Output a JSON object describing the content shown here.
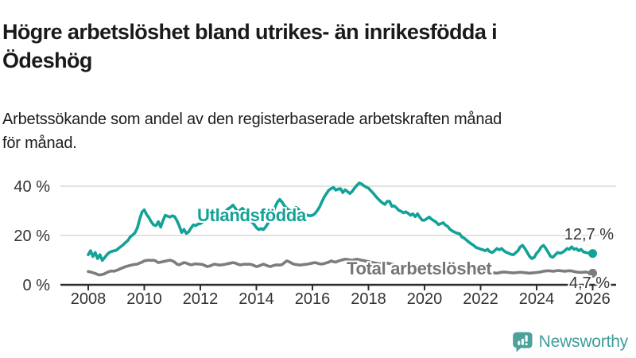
{
  "header": {
    "title": "Högre arbetslöshet bland utrikes- än inrikesfödda i\nÖdeshög",
    "subtitle": "Arbetssökande som andel av den registerbaserade arbetskraften månad\nför månad."
  },
  "footer": {
    "brand": "Newsworthy",
    "brand_color": "#3f9e98",
    "logo_icon": "speech-bubble-bar-chart-icon"
  },
  "chart_data": {
    "type": "line",
    "unit": "%",
    "grid": "horizontal",
    "x_ticks": [
      2008,
      2010,
      2012,
      2014,
      2016,
      2018,
      2020,
      2022,
      2024,
      2026
    ],
    "x_range_years": [
      2007.0,
      2026.85
    ],
    "y_ticks": [
      {
        "value": 0,
        "label": "0 %"
      },
      {
        "value": 20,
        "label": "20 %"
      },
      {
        "value": 40,
        "label": "40 %"
      }
    ],
    "ylim": [
      0,
      42
    ],
    "axis_color": "#2e2e2e",
    "gridline_color": "#d9d9d9",
    "series": [
      {
        "name": "Utlandsfödda",
        "label": "Utlandsfödda",
        "end_label": "12,7 %",
        "end_value": 12.7,
        "color": "#13a297",
        "start_year": 2008.0,
        "monthly_values": [
          12.2,
          13.8,
          11.5,
          13.1,
          10.6,
          12.2,
          9.9,
          11.0,
          12.2,
          13.1,
          13.5,
          13.8,
          14.0,
          14.8,
          15.5,
          16.3,
          17.2,
          18.0,
          19.5,
          20.2,
          21.1,
          23.0,
          26.5,
          29.5,
          30.4,
          28.5,
          27.2,
          25.5,
          24.3,
          24.0,
          25.6,
          23.4,
          26.0,
          28.2,
          27.8,
          27.5,
          28.0,
          27.6,
          26.0,
          23.8,
          21.2,
          22.5,
          20.8,
          21.5,
          23.0,
          24.3,
          24.0,
          24.6,
          24.8,
          25.5,
          26.5,
          27.5,
          28.0,
          28.5,
          27.5,
          26.5,
          27.0,
          28.0,
          29.0,
          30.0,
          30.9,
          31.5,
          32.3,
          31.0,
          29.5,
          30.2,
          31.0,
          30.0,
          28.5,
          27.0,
          25.5,
          24.5,
          23.2,
          22.4,
          22.8,
          22.4,
          23.5,
          25.0,
          27.0,
          29.0,
          31.5,
          33.5,
          34.6,
          33.5,
          32.0,
          31.0,
          30.2,
          29.8,
          30.5,
          31.4,
          30.6,
          29.4,
          29.1,
          28.6,
          28.2,
          28.0,
          28.2,
          28.8,
          30.0,
          31.5,
          33.5,
          35.5,
          37.0,
          38.4,
          39.0,
          39.5,
          38.4,
          38.8,
          39.0,
          37.4,
          38.5,
          37.8,
          37.0,
          37.8,
          39.2,
          40.3,
          41.3,
          40.9,
          40.2,
          39.6,
          39.2,
          38.2,
          37.2,
          36.0,
          35.0,
          34.0,
          33.2,
          32.6,
          33.8,
          33.9,
          31.8,
          32.0,
          31.2,
          30.2,
          29.8,
          29.2,
          29.6,
          29.0,
          28.2,
          28.8,
          27.6,
          28.8,
          27.4,
          26.2,
          26.2,
          26.8,
          27.5,
          26.6,
          26.0,
          25.4,
          24.4,
          24.8,
          25.2,
          24.2,
          23.6,
          22.4,
          21.8,
          21.3,
          20.9,
          20.7,
          19.4,
          18.9,
          18.1,
          17.3,
          16.6,
          16.0,
          15.2,
          14.8,
          14.5,
          14.2,
          13.8,
          14.4,
          13.4,
          13.1,
          13.8,
          14.7,
          14.2,
          14.7,
          13.8,
          13.2,
          12.8,
          12.4,
          12.2,
          13.0,
          13.8,
          15.4,
          16.0,
          14.7,
          13.1,
          11.5,
          10.6,
          11.2,
          12.8,
          13.8,
          15.4,
          16.0,
          14.7,
          13.1,
          11.5,
          11.2,
          12.2,
          13.1,
          12.8,
          13.1,
          13.8,
          14.7,
          14.4,
          15.4,
          14.4,
          14.7,
          13.8,
          14.4,
          13.4,
          13.1,
          12.9,
          12.8,
          12.7
        ]
      },
      {
        "name": "Total arbetslöshet",
        "label": "Total arbetslöshet",
        "end_label": "4,7 %",
        "end_value": 4.7,
        "color": "#7d7d7d",
        "start_year": 2008.0,
        "monthly_values": [
          5.4,
          5.2,
          4.9,
          4.6,
          4.2,
          4.0,
          4.2,
          4.5,
          5.0,
          5.4,
          5.6,
          5.5,
          5.8,
          6.2,
          6.6,
          7.0,
          7.4,
          7.6,
          7.9,
          8.1,
          8.3,
          8.4,
          8.8,
          9.2,
          9.7,
          9.9,
          10.0,
          9.9,
          10.0,
          9.6,
          9.0,
          9.2,
          9.4,
          9.6,
          9.8,
          10.0,
          9.7,
          9.2,
          8.4,
          8.1,
          8.6,
          9.0,
          8.8,
          8.4,
          8.1,
          8.3,
          8.5,
          8.4,
          8.4,
          8.2,
          7.8,
          7.4,
          7.6,
          8.0,
          8.4,
          8.2,
          8.0,
          8.1,
          8.2,
          8.4,
          8.6,
          8.8,
          9.0,
          8.8,
          8.4,
          8.1,
          8.2,
          8.4,
          8.3,
          8.4,
          8.2,
          7.8,
          7.4,
          7.6,
          8.0,
          8.4,
          8.0,
          7.6,
          7.4,
          7.7,
          8.0,
          8.1,
          8.0,
          8.2,
          9.0,
          9.7,
          9.4,
          8.8,
          8.4,
          8.2,
          8.1,
          8.0,
          8.2,
          8.3,
          8.4,
          8.6,
          8.8,
          9.0,
          8.8,
          8.5,
          8.4,
          8.6,
          8.9,
          9.2,
          9.7,
          9.4,
          9.2,
          9.6,
          9.9,
          10.2,
          10.4,
          10.3,
          10.1,
          10.0,
          10.2,
          10.4,
          10.2,
          10.0,
          9.8,
          9.6,
          9.4,
          9.2,
          9.0,
          8.8,
          8.6,
          8.5,
          8.4,
          8.6,
          8.8,
          8.6,
          8.4,
          8.2,
          8.0,
          7.8,
          7.6,
          7.5,
          7.7,
          7.9,
          7.7,
          7.5,
          7.6,
          7.8,
          7.6,
          7.4,
          7.3,
          7.5,
          7.9,
          8.2,
          8.0,
          7.8,
          7.6,
          7.7,
          7.5,
          7.3,
          7.1,
          6.9,
          6.7,
          6.5,
          6.3,
          6.1,
          6.2,
          6.3,
          6.1,
          5.9,
          5.7,
          5.5,
          5.3,
          5.1,
          5.0,
          4.9,
          4.8,
          4.7,
          4.8,
          4.9,
          4.8,
          4.7,
          4.9,
          5.1,
          5.2,
          5.1,
          5.0,
          4.9,
          4.8,
          4.9,
          5.0,
          5.1,
          5.0,
          4.9,
          4.8,
          4.7,
          4.8,
          4.9,
          5.0,
          5.1,
          5.3,
          5.5,
          5.6,
          5.7,
          5.6,
          5.5,
          5.6,
          5.8,
          5.7,
          5.6,
          5.5,
          5.6,
          5.7,
          5.6,
          5.4,
          5.2,
          5.1,
          5.0,
          5.1,
          5.2,
          5.0,
          4.8,
          4.7
        ]
      }
    ]
  }
}
